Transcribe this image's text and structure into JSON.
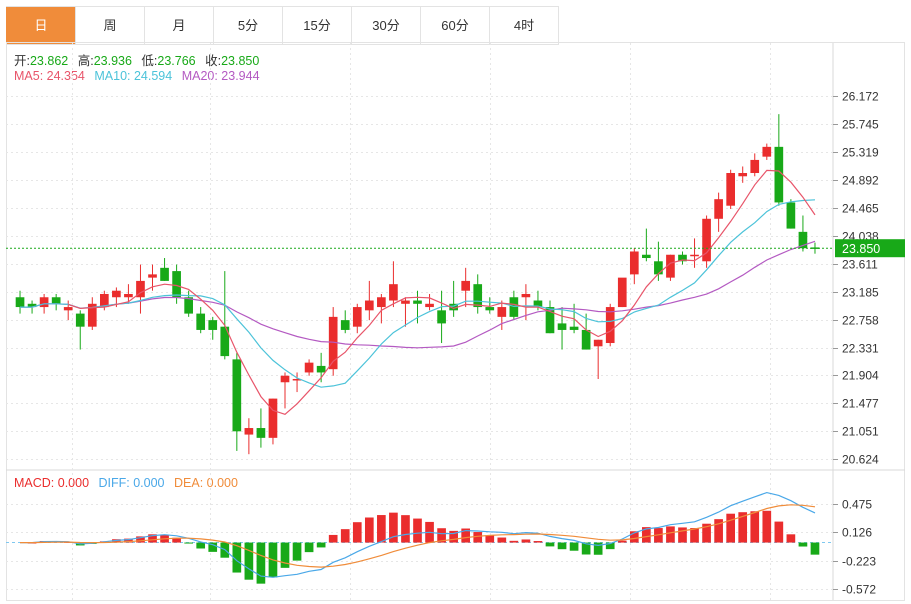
{
  "tabs": [
    {
      "label": "日",
      "active": true
    },
    {
      "label": "周",
      "active": false
    },
    {
      "label": "月",
      "active": false
    },
    {
      "label": "5分",
      "active": false
    },
    {
      "label": "15分",
      "active": false
    },
    {
      "label": "30分",
      "active": false
    },
    {
      "label": "60分",
      "active": false
    },
    {
      "label": "4时",
      "active": false
    }
  ],
  "ohlc_legend": {
    "open_label": "开:",
    "open": "23.862",
    "high_label": "高:",
    "high": "23.936",
    "low_label": "低:",
    "low": "23.766",
    "close_label": "收:",
    "close": "23.850"
  },
  "ma_legend": {
    "ma5": "MA5: 24.354",
    "ma10": "MA10: 24.594",
    "ma20": "MA20: 23.944"
  },
  "macd_legend": {
    "macd": "MACD: 0.000",
    "diff": "DIFF: 0.000",
    "dea": "DEA: 0.000"
  },
  "colors": {
    "up": "#ea2d2d",
    "down": "#18a918",
    "ma5": "#e8556a",
    "ma10": "#4cc3d9",
    "ma20": "#b45ac2",
    "diff": "#4aa8e8",
    "dea": "#f08c3a",
    "accent": "#f08c3a",
    "current": "#18a918"
  },
  "chart_data": [
    {
      "type": "candlestick",
      "ylim": [
        20.55,
        26.3
      ],
      "yticks": [
        "26.172",
        "25.745",
        "25.319",
        "24.892",
        "24.465",
        "24.038",
        "23.611",
        "23.185",
        "22.758",
        "22.331",
        "21.904",
        "21.477",
        "21.051",
        "20.624"
      ],
      "current_price": "23.850",
      "candles": [
        [
          23.1,
          23.2,
          22.85,
          22.95
        ],
        [
          23.0,
          23.05,
          22.85,
          22.95
        ],
        [
          22.95,
          23.15,
          22.85,
          23.1
        ],
        [
          23.1,
          23.15,
          22.9,
          23.0
        ],
        [
          22.9,
          23.05,
          22.75,
          22.95
        ],
        [
          22.85,
          22.9,
          22.3,
          22.65
        ],
        [
          22.65,
          23.1,
          22.6,
          23.0
        ],
        [
          22.95,
          23.2,
          22.9,
          23.15
        ],
        [
          23.1,
          23.25,
          22.95,
          23.2
        ],
        [
          23.1,
          23.3,
          23.0,
          23.15
        ],
        [
          23.1,
          23.6,
          22.85,
          23.35
        ],
        [
          23.4,
          23.6,
          23.2,
          23.45
        ],
        [
          23.55,
          23.7,
          23.35,
          23.35
        ],
        [
          23.5,
          23.6,
          23.0,
          23.1
        ],
        [
          23.1,
          23.2,
          22.8,
          22.85
        ],
        [
          22.85,
          22.95,
          22.55,
          22.6
        ],
        [
          22.75,
          22.8,
          22.45,
          22.6
        ],
        [
          22.65,
          23.5,
          22.15,
          22.2
        ],
        [
          22.15,
          22.25,
          20.75,
          21.05
        ],
        [
          21.0,
          21.25,
          20.7,
          21.1
        ],
        [
          21.1,
          21.4,
          20.8,
          20.95
        ],
        [
          20.95,
          21.55,
          20.85,
          21.55
        ],
        [
          21.8,
          21.95,
          21.4,
          21.9
        ],
        [
          21.85,
          21.95,
          21.65,
          21.85
        ],
        [
          21.95,
          22.15,
          21.9,
          22.1
        ],
        [
          22.05,
          22.25,
          21.8,
          21.95
        ],
        [
          22.0,
          22.95,
          21.9,
          22.8
        ],
        [
          22.75,
          22.9,
          22.55,
          22.6
        ],
        [
          22.65,
          23.0,
          22.55,
          22.95
        ],
        [
          22.9,
          23.35,
          22.75,
          23.05
        ],
        [
          22.95,
          23.15,
          22.7,
          23.1
        ],
        [
          23.05,
          23.65,
          22.95,
          23.3
        ],
        [
          23.0,
          23.1,
          22.65,
          23.05
        ],
        [
          23.05,
          23.2,
          22.7,
          23.0
        ],
        [
          22.95,
          23.15,
          22.9,
          23.0
        ],
        [
          22.9,
          23.2,
          22.4,
          22.7
        ],
        [
          23.0,
          23.35,
          22.8,
          22.9
        ],
        [
          23.2,
          23.55,
          22.95,
          23.35
        ],
        [
          23.3,
          23.45,
          22.85,
          22.95
        ],
        [
          22.95,
          23.1,
          22.85,
          22.9
        ],
        [
          22.8,
          23.05,
          22.6,
          22.95
        ],
        [
          23.1,
          23.2,
          22.75,
          22.8
        ],
        [
          23.1,
          23.3,
          22.75,
          23.15
        ],
        [
          23.05,
          23.2,
          22.9,
          22.95
        ],
        [
          22.95,
          23.05,
          22.55,
          22.55
        ],
        [
          22.7,
          22.95,
          22.3,
          22.6
        ],
        [
          22.65,
          23.0,
          22.55,
          22.6
        ],
        [
          22.6,
          22.85,
          22.3,
          22.3
        ],
        [
          22.35,
          22.45,
          21.85,
          22.45
        ],
        [
          22.4,
          23.0,
          22.35,
          22.95
        ],
        [
          22.95,
          23.35,
          22.95,
          23.4
        ],
        [
          23.45,
          23.85,
          23.3,
          23.8
        ],
        [
          23.75,
          24.15,
          23.65,
          23.7
        ],
        [
          23.65,
          23.95,
          23.35,
          23.45
        ],
        [
          23.4,
          23.75,
          23.35,
          23.75
        ],
        [
          23.75,
          23.8,
          23.6,
          23.65
        ],
        [
          23.75,
          24.0,
          23.55,
          23.75
        ],
        [
          23.65,
          24.35,
          23.55,
          24.3
        ],
        [
          24.3,
          24.7,
          24.1,
          24.6
        ],
        [
          24.5,
          25.05,
          24.45,
          25.0
        ],
        [
          24.95,
          25.1,
          24.85,
          25.0
        ],
        [
          25.0,
          25.3,
          24.95,
          25.2
        ],
        [
          25.25,
          25.45,
          25.2,
          25.4
        ],
        [
          25.4,
          25.9,
          24.5,
          24.55
        ],
        [
          24.55,
          24.6,
          24.15,
          24.15
        ],
        [
          24.1,
          24.35,
          23.8,
          23.85
        ],
        [
          23.862,
          23.936,
          23.766,
          23.85
        ]
      ]
    },
    {
      "type": "macd",
      "ylim": [
        -0.68,
        0.62
      ],
      "yticks": [
        "0.475",
        "0.126",
        "-0.223",
        "-0.572"
      ]
    }
  ]
}
